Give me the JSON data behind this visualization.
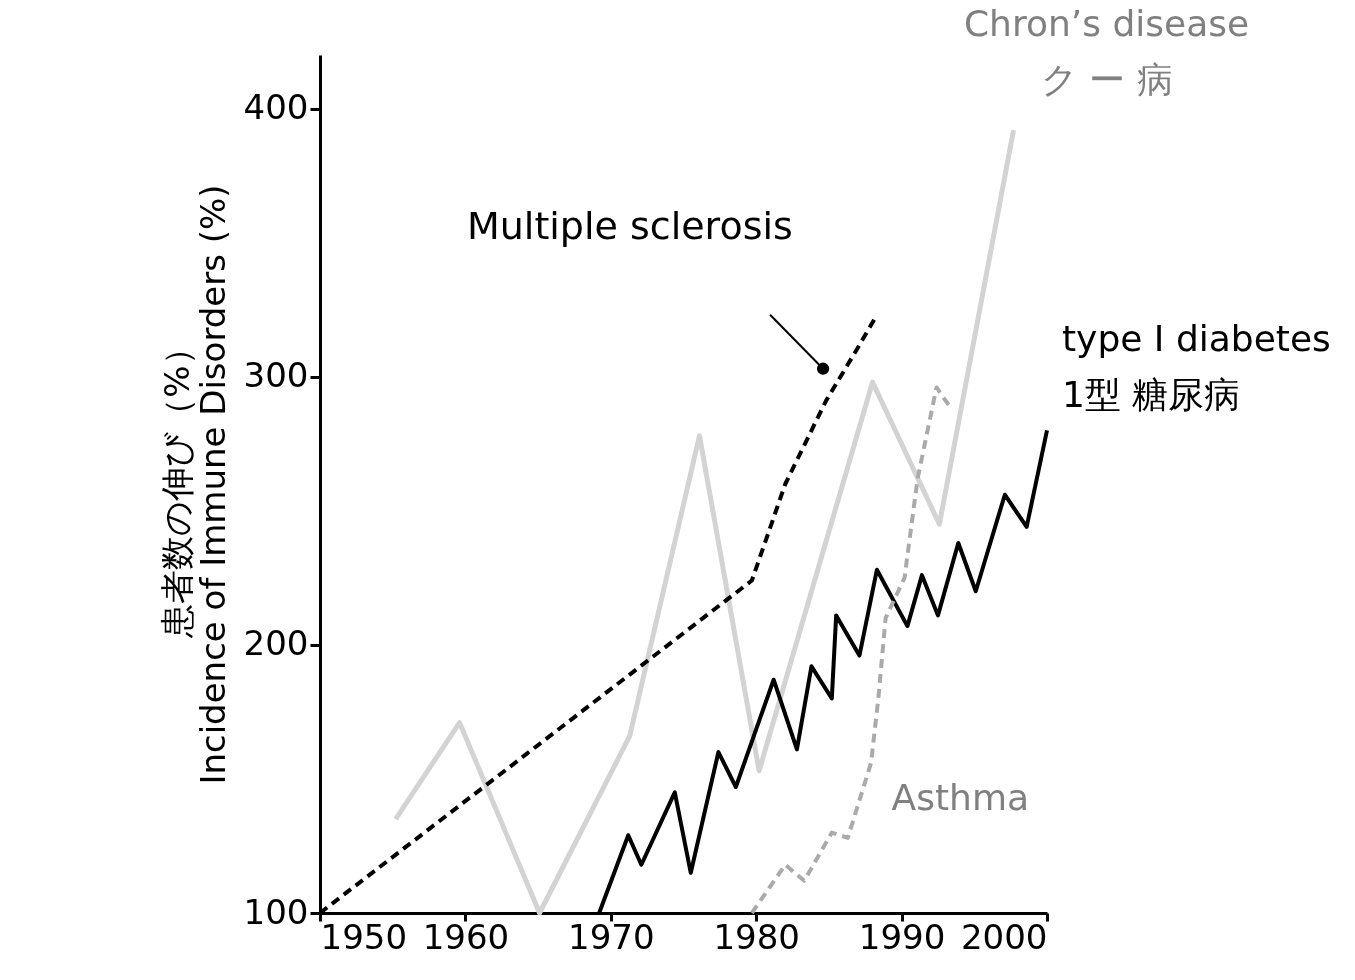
{
  "chart_data": {
    "type": "line",
    "ylabel": "患者数の伸び（%）\nIncidence of Immune Disorders (%)",
    "xlim": [
      1950,
      2000
    ],
    "xticks": [
      1950,
      1960,
      1970,
      1980,
      1990,
      2000
    ],
    "ylim": [
      100,
      420
    ],
    "yticks": [
      100,
      200,
      300,
      400
    ],
    "grid": false,
    "legend": false,
    "marker": "none",
    "series": [
      {
        "name": "Chron’s disease\nク ー 病",
        "color": "#d3d3d3",
        "line_style": "solid",
        "x": [
          1955.2,
          1959.6,
          1965.1,
          1971.3,
          1976.1,
          1980.2,
          1988.0,
          1992.6,
          1997.7
        ],
        "values": [
          135,
          171,
          100,
          166,
          278,
          153,
          298,
          245,
          392
        ]
      },
      {
        "name": "Multiple sclerosis",
        "color": "#000000",
        "line_style": "dashed",
        "x": [
          1950,
          1979.7,
          1982.0,
          1984.8,
          1986.9,
          1988.3
        ],
        "values": [
          100,
          224,
          260,
          291,
          310,
          323
        ]
      },
      {
        "name": "type I diabetes\n1型 糖尿病",
        "color": "#000000",
        "line_style": "solid",
        "x": [
          1969.2,
          1971.2,
          1972.1,
          1974.4,
          1975.5,
          1977.4,
          1978.6,
          1981.2,
          1982.8,
          1983.8,
          1985.2,
          1985.5,
          1987.1,
          1988.3,
          1990.4,
          1991.4,
          1992.5,
          1993.9,
          1995.1,
          1997.1,
          1998.6,
          2000
        ],
        "values": [
          100,
          129,
          118,
          145,
          115,
          160,
          147,
          187,
          161,
          192,
          180,
          211,
          196,
          228,
          207,
          226,
          211,
          238,
          220,
          256,
          244,
          280
        ]
      },
      {
        "name": "Asthma",
        "color": "#aaaaaa",
        "line_style": "dashed",
        "x": [
          1979.7,
          1982.0,
          1983.3,
          1985.2,
          1986.3,
          1987.9,
          1988.4,
          1988.9,
          1990.2,
          1991.1,
          1992.4,
          1993.3
        ],
        "values": [
          100,
          118,
          112,
          130,
          128,
          156,
          180,
          210,
          225,
          262,
          296,
          289
        ]
      }
    ]
  }
}
